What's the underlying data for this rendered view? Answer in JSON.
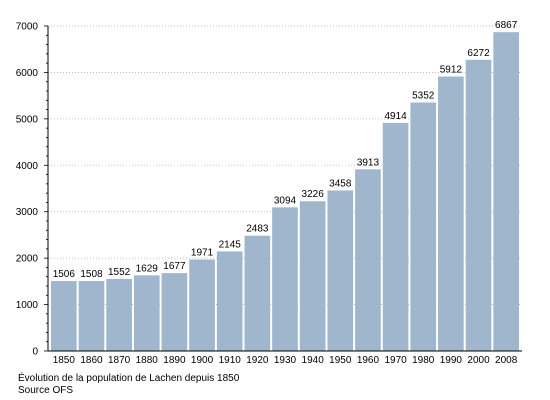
{
  "chart_data": {
    "type": "bar",
    "categories": [
      "1850",
      "1860",
      "1870",
      "1880",
      "1890",
      "1900",
      "1910",
      "1920",
      "1930",
      "1940",
      "1950",
      "1960",
      "1970",
      "1980",
      "1990",
      "2000",
      "2008"
    ],
    "values": [
      1506,
      1508,
      1552,
      1629,
      1677,
      1971,
      2145,
      2483,
      3094,
      3226,
      3458,
      3913,
      4914,
      5352,
      5912,
      6272,
      6867
    ],
    "ylim": [
      0,
      7000
    ],
    "yticks": [
      0,
      1000,
      2000,
      3000,
      4000,
      5000,
      6000,
      7000
    ],
    "grid": "horizontal dotted",
    "bar_color": "#9fb6cd",
    "title": "",
    "xlabel": "",
    "ylabel": ""
  },
  "caption": {
    "line1": "Évolution de la population de Lachen depuis 1850",
    "line2": "Source OFS"
  }
}
